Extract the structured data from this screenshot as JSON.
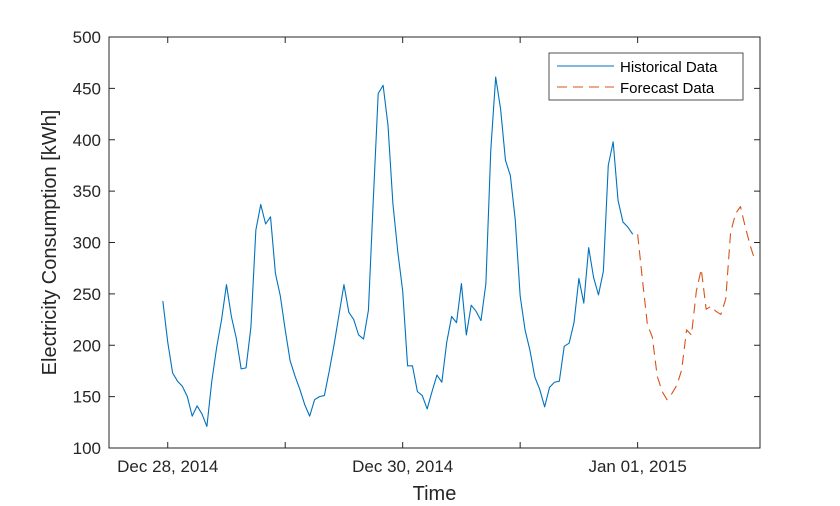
{
  "chart_data": {
    "type": "line",
    "xlabel": "Time",
    "ylabel": "Electricity Consumption [kWh]",
    "ylim": [
      100,
      500
    ],
    "yticks": [
      100,
      150,
      200,
      250,
      300,
      350,
      400,
      450,
      500
    ],
    "xlim": [
      "2014-12-27 12:00",
      "2015-01-02 01:00"
    ],
    "xticks": [
      {
        "x": "2014-12-28 00:00",
        "label": "Dec 28, 2014"
      },
      {
        "x": "2014-12-29 00:00",
        "label": ""
      },
      {
        "x": "2014-12-30 00:00",
        "label": "Dec 30, 2014"
      },
      {
        "x": "2014-12-31 00:00",
        "label": ""
      },
      {
        "x": "2015-01-01 00:00",
        "label": "Jan 01, 2015"
      }
    ],
    "grid": false,
    "legend_position": "top-right",
    "series": [
      {
        "name": "Historical Data",
        "color": "#0072BD",
        "style": "solid",
        "start": "2014-12-27 23:00",
        "step_hours": 1,
        "values": [
          243,
          203,
          173,
          165,
          160,
          150,
          131,
          141,
          133,
          121,
          165,
          198,
          225,
          259,
          228,
          207,
          177,
          178,
          218,
          312,
          337,
          318,
          325,
          270,
          248,
          215,
          185,
          170,
          157,
          142,
          131,
          147,
          150,
          151,
          175,
          201,
          230,
          259,
          232,
          225,
          210,
          206,
          234,
          342,
          445,
          453,
          414,
          338,
          291,
          253,
          180,
          180,
          155,
          151,
          138,
          155,
          171,
          164,
          203,
          228,
          222,
          260,
          210,
          239,
          233,
          224,
          260,
          390,
          461,
          430,
          380,
          365,
          322,
          248,
          215,
          195,
          169,
          157,
          140,
          159,
          164,
          165,
          199,
          202,
          222,
          265,
          241,
          295,
          266,
          249,
          272,
          375,
          398,
          341,
          320,
          315,
          308
        ]
      },
      {
        "name": "Forecast Data",
        "color": "#D95319",
        "style": "dashed",
        "start": "2015-01-01 00:00",
        "step_hours": 1,
        "values": [
          308,
          263,
          220,
          208,
          170,
          155,
          147,
          153,
          161,
          176,
          215,
          210,
          253,
          274,
          235,
          238,
          233,
          230,
          245,
          310,
          328,
          335,
          315,
          297,
          282
        ]
      }
    ]
  }
}
